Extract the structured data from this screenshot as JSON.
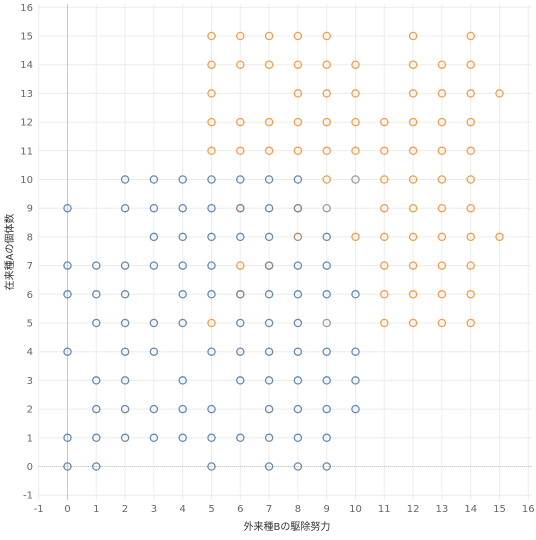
{
  "chart_data": {
    "type": "scatter",
    "xlabel": "外来種Bの駆除努力",
    "ylabel": "在来種Aの個体数",
    "xlim": [
      -1,
      16
    ],
    "ylim": [
      -1,
      16
    ],
    "x_ticks": [
      "-1",
      "0",
      "1",
      "2",
      "3",
      "4",
      "5",
      "6",
      "7",
      "8",
      "9",
      "10",
      "11",
      "12",
      "13",
      "14",
      "15",
      "16"
    ],
    "y_ticks": [
      "-1",
      "0",
      "1",
      "2",
      "3",
      "4",
      "5",
      "6",
      "7",
      "8",
      "9",
      "10",
      "11",
      "12",
      "13",
      "14",
      "15",
      "16"
    ],
    "grid": true,
    "legend": "none",
    "colors": {
      "blue": "#4e79a7",
      "orange": "#f28e2b",
      "mixed": "#8c8c8c",
      "mixed_warm": "#a8785a"
    },
    "series": [
      {
        "color": "blue",
        "points": [
          [
            0,
            0
          ],
          [
            1,
            0
          ],
          [
            5,
            0
          ],
          [
            7,
            0
          ],
          [
            8,
            0
          ],
          [
            9,
            0
          ],
          [
            0,
            1
          ],
          [
            1,
            1
          ],
          [
            2,
            1
          ],
          [
            3,
            1
          ],
          [
            4,
            1
          ],
          [
            5,
            1
          ],
          [
            6,
            1
          ],
          [
            7,
            1
          ],
          [
            8,
            1
          ],
          [
            9,
            1
          ],
          [
            1,
            2
          ],
          [
            2,
            2
          ],
          [
            3,
            2
          ],
          [
            4,
            2
          ],
          [
            5,
            2
          ],
          [
            7,
            2
          ],
          [
            8,
            2
          ],
          [
            9,
            2
          ],
          [
            10,
            2
          ],
          [
            1,
            3
          ],
          [
            2,
            3
          ],
          [
            4,
            3
          ],
          [
            6,
            3
          ],
          [
            7,
            3
          ],
          [
            8,
            3
          ],
          [
            9,
            3
          ],
          [
            10,
            3
          ],
          [
            0,
            4
          ],
          [
            2,
            4
          ],
          [
            3,
            4
          ],
          [
            5,
            4
          ],
          [
            6,
            4
          ],
          [
            7,
            4
          ],
          [
            8,
            4
          ],
          [
            9,
            4
          ],
          [
            10,
            4
          ],
          [
            1,
            5
          ],
          [
            2,
            5
          ],
          [
            3,
            5
          ],
          [
            4,
            5
          ],
          [
            6,
            5
          ],
          [
            7,
            5
          ],
          [
            8,
            5
          ],
          [
            0,
            6
          ],
          [
            1,
            6
          ],
          [
            2,
            6
          ],
          [
            4,
            6
          ],
          [
            5,
            6
          ],
          [
            6,
            6
          ],
          [
            7,
            6
          ],
          [
            8,
            6
          ],
          [
            9,
            6
          ],
          [
            10,
            6
          ],
          [
            0,
            7
          ],
          [
            1,
            7
          ],
          [
            2,
            7
          ],
          [
            3,
            7
          ],
          [
            4,
            7
          ],
          [
            5,
            7
          ],
          [
            7,
            7
          ],
          [
            8,
            7
          ],
          [
            9,
            7
          ],
          [
            3,
            8
          ],
          [
            4,
            8
          ],
          [
            5,
            8
          ],
          [
            6,
            8
          ],
          [
            7,
            8
          ],
          [
            9,
            8
          ],
          [
            0,
            9
          ],
          [
            2,
            9
          ],
          [
            3,
            9
          ],
          [
            4,
            9
          ],
          [
            5,
            9
          ],
          [
            7,
            9
          ],
          [
            8,
            9
          ],
          [
            2,
            10
          ],
          [
            3,
            10
          ],
          [
            4,
            10
          ],
          [
            5,
            10
          ],
          [
            6,
            10
          ],
          [
            7,
            10
          ],
          [
            8,
            10
          ]
        ]
      },
      {
        "color": "orange",
        "points": [
          [
            5,
            5
          ],
          [
            11,
            5
          ],
          [
            12,
            5
          ],
          [
            13,
            5
          ],
          [
            14,
            5
          ],
          [
            11,
            6
          ],
          [
            12,
            6
          ],
          [
            13,
            6
          ],
          [
            14,
            6
          ],
          [
            6,
            7
          ],
          [
            11,
            7
          ],
          [
            12,
            7
          ],
          [
            13,
            7
          ],
          [
            14,
            7
          ],
          [
            10,
            8
          ],
          [
            11,
            8
          ],
          [
            12,
            8
          ],
          [
            13,
            8
          ],
          [
            14,
            8
          ],
          [
            15,
            8
          ],
          [
            11,
            9
          ],
          [
            12,
            9
          ],
          [
            13,
            9
          ],
          [
            14,
            9
          ],
          [
            9,
            10
          ],
          [
            11,
            10
          ],
          [
            12,
            10
          ],
          [
            13,
            10
          ],
          [
            14,
            10
          ],
          [
            5,
            11
          ],
          [
            6,
            11
          ],
          [
            7,
            11
          ],
          [
            8,
            11
          ],
          [
            9,
            11
          ],
          [
            10,
            11
          ],
          [
            11,
            11
          ],
          [
            12,
            11
          ],
          [
            13,
            11
          ],
          [
            14,
            11
          ],
          [
            5,
            12
          ],
          [
            6,
            12
          ],
          [
            7,
            12
          ],
          [
            8,
            12
          ],
          [
            9,
            12
          ],
          [
            10,
            12
          ],
          [
            11,
            12
          ],
          [
            12,
            12
          ],
          [
            13,
            12
          ],
          [
            14,
            12
          ],
          [
            5,
            13
          ],
          [
            8,
            13
          ],
          [
            9,
            13
          ],
          [
            10,
            13
          ],
          [
            12,
            13
          ],
          [
            13,
            13
          ],
          [
            14,
            13
          ],
          [
            15,
            13
          ],
          [
            5,
            14
          ],
          [
            6,
            14
          ],
          [
            7,
            14
          ],
          [
            8,
            14
          ],
          [
            9,
            14
          ],
          [
            10,
            14
          ],
          [
            12,
            14
          ],
          [
            13,
            14
          ],
          [
            14,
            14
          ],
          [
            5,
            15
          ],
          [
            6,
            15
          ],
          [
            7,
            15
          ],
          [
            8,
            15
          ],
          [
            9,
            15
          ],
          [
            12,
            15
          ],
          [
            14,
            15
          ]
        ]
      },
      {
        "color": "mixed",
        "points": [
          [
            9,
            5
          ],
          [
            6,
            6
          ],
          [
            7,
            7
          ],
          [
            6,
            9
          ],
          [
            8,
            9
          ],
          [
            9,
            9
          ],
          [
            10,
            10
          ]
        ]
      },
      {
        "color": "mixed_warm",
        "points": [
          [
            8,
            8
          ],
          [
            6,
            9
          ]
        ]
      }
    ]
  }
}
